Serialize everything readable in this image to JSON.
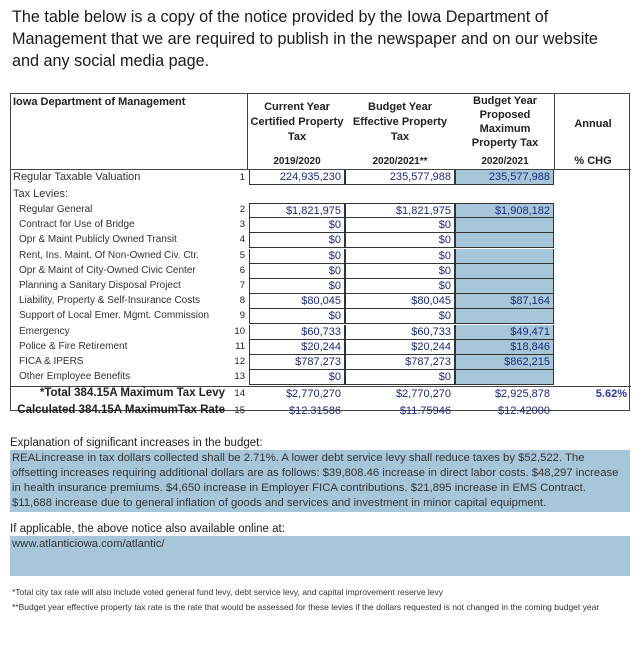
{
  "intro": "The table below is a copy of the notice provided by the Iowa Department of Management that we are required to publish in the newspaper and on our website and any social media page.",
  "table": {
    "title": "Iowa Department of Management",
    "headers": [
      {
        "name": "Current Year Certified Property Tax",
        "year": "2019/2020"
      },
      {
        "name": "Budget Year Effective Property Tax",
        "year": "2020/2021**"
      },
      {
        "name": "Budget Year Proposed Maximum Property Tax",
        "year": "2020/2021"
      },
      {
        "name": "Annual",
        "year": "% CHG"
      }
    ],
    "valuation": {
      "label": "Regular Taxable Valuation",
      "num": "1",
      "values": [
        "224,935,230",
        "235,577,988",
        "235,577,988"
      ]
    },
    "levies_label": "Tax Levies:",
    "levies": [
      {
        "label": "Regular General",
        "num": "2",
        "values": [
          "$1,821,975",
          "$1,821,975",
          "$1,908,182"
        ]
      },
      {
        "label": "Contract for Use of Bridge",
        "num": "3",
        "values": [
          "$0",
          "$0",
          ""
        ]
      },
      {
        "label": "Opr & Maint Publicly Owned Transit",
        "num": "4",
        "values": [
          "$0",
          "$0",
          ""
        ]
      },
      {
        "label": "Rent, Ins. Maint. Of Non-Owned Civ. Ctr.",
        "num": "5",
        "values": [
          "$0",
          "$0",
          ""
        ]
      },
      {
        "label": "Opr & Maint of City-Owned Civic Center",
        "num": "6",
        "values": [
          "$0",
          "$0",
          ""
        ]
      },
      {
        "label": "Planning a Sanitary Disposal Project",
        "num": "7",
        "values": [
          "$0",
          "$0",
          ""
        ]
      },
      {
        "label": "Liability, Property & Self-Insurance Costs",
        "num": "8",
        "values": [
          "$80,045",
          "$80,045",
          "$87,164"
        ]
      },
      {
        "label": "Support of Local Emer. Mgmt. Commission",
        "num": "9",
        "values": [
          "$0",
          "$0",
          ""
        ]
      },
      {
        "label": "Emergency",
        "num": "10",
        "values": [
          "$60,733",
          "$60,733",
          "$49,471"
        ]
      },
      {
        "label": "Police & Fire Retirement",
        "num": "11",
        "values": [
          "$20,244",
          "$20,244",
          "$18,846"
        ]
      },
      {
        "label": "FICA & IPERS",
        "num": "12",
        "values": [
          "$787,273",
          "$787,273",
          "$862,215"
        ]
      },
      {
        "label": "Other Employee Benefits",
        "num": "13",
        "values": [
          "$0",
          "$0",
          ""
        ]
      }
    ],
    "total": {
      "label": "*Total 384.15A Maximum Tax Levy",
      "num": "14",
      "values": [
        "$2,770,270",
        "$2,770,270",
        "$2,925,878"
      ],
      "pct": "5.62%"
    },
    "rate": {
      "label": "Calculated 384.15A MaximumTax Rate",
      "num": "15",
      "values": [
        "$12.31586",
        "$11.75946",
        "$12.42000"
      ]
    }
  },
  "explanation": {
    "label": "Explanation of significant increases in the budget:",
    "text": "REALincrease in tax dollars collected shall be 2.71%. A lower debt service levy shall reduce taxes by $52,522. The offsetting increases requiring additional dollars are as follows: $39,808.46 increase in direct labor costs. $48,297 increase in health insurance premiums. $4,650 increase in Employer FICA contributions. $21,895 increase in EMS Contract. $11,688 increase due to general inflation of goods and services and investment in minor capital equipment."
  },
  "online": {
    "label": "If applicable, the above notice also available online at:",
    "url": "www.atlanticiowa.com/atlantic/"
  },
  "footnotes": [
    "*Total city tax rate will also include voted general fund levy, debt service levy, and capital improvement reserve levy",
    "**Budget year effective property tax rate is the rate that would be assessed for these levies if the dollars requested is not changed in the coming budget year"
  ],
  "colors": {
    "highlight": "#a8c6da",
    "values": "#1a2a7a"
  }
}
